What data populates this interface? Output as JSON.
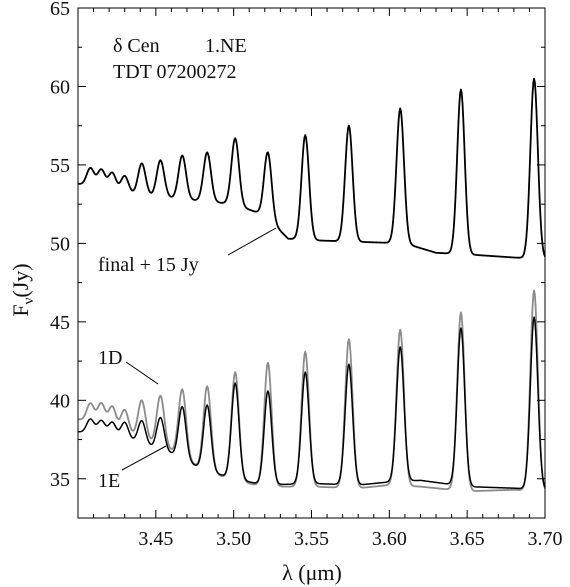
{
  "chart_data": {
    "type": "line",
    "xlabel": "λ (μm)",
    "ylabel": "Fν(Jy)",
    "ylabel_main": "F",
    "ylabel_sub": "ν",
    "ylabel_tail": "(Jy)",
    "xlim": [
      3.4,
      3.7
    ],
    "ylim": [
      32.5,
      65
    ],
    "xticks": [
      3.45,
      3.5,
      3.55,
      3.6,
      3.65,
      3.7
    ],
    "xtick_labels": [
      "3.45",
      "3.50",
      "3.55",
      "3.60",
      "3.65",
      "3.70"
    ],
    "yticks": [
      35,
      40,
      45,
      50,
      55,
      60,
      65
    ],
    "ytick_labels": [
      "35",
      "40",
      "45",
      "50",
      "55",
      "60",
      "65"
    ],
    "grid": false,
    "legend": "none",
    "annotations": {
      "star": "δ Cen",
      "detector": "1.NE",
      "tdt": "TDT 07200272",
      "final": "final + 15 Jy",
      "band_1d": "1D",
      "band_1e": "1E"
    },
    "colors": {
      "final": "#000000",
      "1E": "#000000",
      "1D": "#8c8c8c"
    },
    "series": [
      {
        "name": "final + 15 Jy",
        "base_points": [
          [
            3.4,
            53.8
          ],
          [
            3.43,
            53.2
          ],
          [
            3.47,
            52.8
          ],
          [
            3.5,
            52.5
          ],
          [
            3.52,
            51.8
          ],
          [
            3.535,
            50.3
          ],
          [
            3.55,
            50.2
          ],
          [
            3.58,
            50.1
          ],
          [
            3.61,
            50.0
          ],
          [
            3.63,
            49.4
          ],
          [
            3.65,
            49.3
          ],
          [
            3.68,
            49.1
          ],
          [
            3.7,
            49.0
          ]
        ],
        "peaks": [
          {
            "x": 3.408,
            "peak": 54.8
          },
          {
            "x": 3.415,
            "peak": 54.7
          },
          {
            "x": 3.422,
            "peak": 54.5
          },
          {
            "x": 3.43,
            "peak": 54.3
          },
          {
            "x": 3.441,
            "peak": 55.1
          },
          {
            "x": 3.453,
            "peak": 55.3
          },
          {
            "x": 3.467,
            "peak": 55.6
          },
          {
            "x": 3.483,
            "peak": 55.8
          },
          {
            "x": 3.501,
            "peak": 56.7
          },
          {
            "x": 3.522,
            "peak": 55.8
          },
          {
            "x": 3.546,
            "peak": 56.9
          },
          {
            "x": 3.574,
            "peak": 57.5
          },
          {
            "x": 3.607,
            "peak": 58.6
          },
          {
            "x": 3.646,
            "peak": 59.8
          },
          {
            "x": 3.693,
            "peak": 60.5
          }
        ]
      },
      {
        "name": "1E",
        "base_points": [
          [
            3.4,
            38.0
          ],
          [
            3.43,
            37.6
          ],
          [
            3.46,
            36.6
          ],
          [
            3.48,
            35.6
          ],
          [
            3.5,
            35.0
          ],
          [
            3.52,
            34.6
          ],
          [
            3.55,
            34.7
          ],
          [
            3.58,
            34.6
          ],
          [
            3.6,
            34.8
          ],
          [
            3.62,
            34.9
          ],
          [
            3.65,
            34.5
          ],
          [
            3.68,
            34.4
          ],
          [
            3.7,
            34.3
          ]
        ],
        "peaks": [
          {
            "x": 3.408,
            "peak": 38.8
          },
          {
            "x": 3.415,
            "peak": 38.7
          },
          {
            "x": 3.422,
            "peak": 38.6
          },
          {
            "x": 3.43,
            "peak": 38.6
          },
          {
            "x": 3.441,
            "peak": 38.7
          },
          {
            "x": 3.453,
            "peak": 38.9
          },
          {
            "x": 3.467,
            "peak": 39.6
          },
          {
            "x": 3.483,
            "peak": 39.7
          },
          {
            "x": 3.501,
            "peak": 41.1
          },
          {
            "x": 3.522,
            "peak": 40.6
          },
          {
            "x": 3.546,
            "peak": 41.8
          },
          {
            "x": 3.574,
            "peak": 42.3
          },
          {
            "x": 3.607,
            "peak": 43.4
          },
          {
            "x": 3.646,
            "peak": 44.6
          },
          {
            "x": 3.693,
            "peak": 45.3
          }
        ]
      },
      {
        "name": "1D",
        "base_points": [
          [
            3.4,
            38.8
          ],
          [
            3.43,
            38.0
          ],
          [
            3.46,
            36.8
          ],
          [
            3.48,
            35.6
          ],
          [
            3.5,
            34.9
          ],
          [
            3.52,
            34.5
          ],
          [
            3.55,
            34.5
          ],
          [
            3.58,
            34.4
          ],
          [
            3.6,
            34.6
          ],
          [
            3.62,
            34.5
          ],
          [
            3.65,
            34.2
          ],
          [
            3.68,
            34.3
          ],
          [
            3.7,
            34.2
          ]
        ],
        "peaks": [
          {
            "x": 3.408,
            "peak": 39.8
          },
          {
            "x": 3.415,
            "peak": 39.8
          },
          {
            "x": 3.422,
            "peak": 39.6
          },
          {
            "x": 3.43,
            "peak": 39.4
          },
          {
            "x": 3.441,
            "peak": 40.0
          },
          {
            "x": 3.453,
            "peak": 40.3
          },
          {
            "x": 3.467,
            "peak": 40.7
          },
          {
            "x": 3.483,
            "peak": 40.9
          },
          {
            "x": 3.501,
            "peak": 41.8
          },
          {
            "x": 3.522,
            "peak": 42.4
          },
          {
            "x": 3.546,
            "peak": 43.1
          },
          {
            "x": 3.574,
            "peak": 43.9
          },
          {
            "x": 3.607,
            "peak": 44.5
          },
          {
            "x": 3.646,
            "peak": 45.6
          },
          {
            "x": 3.693,
            "peak": 47.0
          }
        ]
      }
    ]
  }
}
